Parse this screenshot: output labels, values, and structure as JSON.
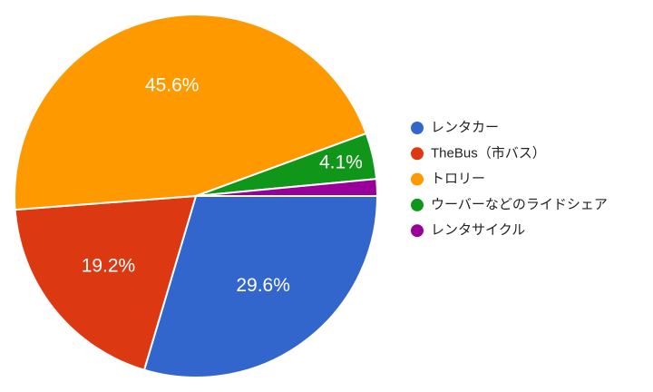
{
  "chart_data": {
    "type": "pie",
    "categories": [
      "レンタカー",
      "TheBus（市バス）",
      "トロリー",
      "ウーバーなどのライドシェア",
      "レンタサイクル"
    ],
    "values": [
      29.6,
      19.2,
      45.6,
      4.1,
      1.5
    ],
    "value_labels": [
      "29.6%",
      "19.2%",
      "45.6%",
      "4.1%",
      null
    ],
    "colors": [
      "#3366cc",
      "#dc3912",
      "#ff9900",
      "#109618",
      "#990099"
    ],
    "legend": "right"
  }
}
